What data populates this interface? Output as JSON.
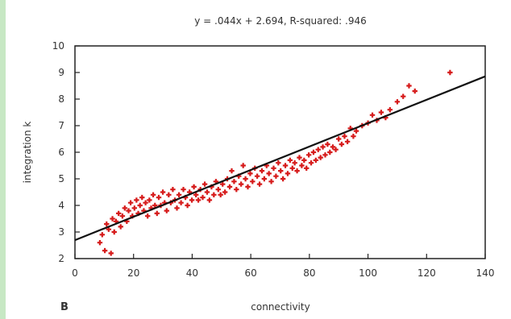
{
  "panel_label": "B",
  "chart_data": {
    "type": "scatter",
    "title": "y = .044x + 2.694, R-squared: .946",
    "xlabel": "connectivity",
    "ylabel": "integration k",
    "xlim": [
      0,
      140
    ],
    "ylim": [
      2,
      10
    ],
    "xticks": [
      0,
      20,
      40,
      60,
      80,
      100,
      120,
      140
    ],
    "yticks": [
      2,
      3,
      4,
      5,
      6,
      7,
      8,
      9,
      10
    ],
    "grid": false,
    "point_color": "#d61a1a",
    "line_color": "#111111",
    "regression": {
      "slope": 0.044,
      "intercept": 2.694
    },
    "points": [
      [
        8.5,
        2.6
      ],
      [
        9.3,
        2.9
      ],
      [
        10.2,
        2.3
      ],
      [
        10.8,
        3.3
      ],
      [
        11.5,
        3.1
      ],
      [
        12.3,
        2.2
      ],
      [
        12.8,
        3.5
      ],
      [
        13.4,
        3.0
      ],
      [
        14.0,
        3.4
      ],
      [
        14.9,
        3.7
      ],
      [
        15.6,
        3.2
      ],
      [
        16.2,
        3.6
      ],
      [
        17.0,
        3.9
      ],
      [
        17.7,
        3.4
      ],
      [
        18.3,
        3.8
      ],
      [
        19.0,
        4.1
      ],
      [
        19.6,
        3.6
      ],
      [
        20.3,
        3.9
      ],
      [
        21.0,
        4.2
      ],
      [
        21.6,
        3.7
      ],
      [
        22.2,
        4.0
      ],
      [
        22.9,
        4.3
      ],
      [
        23.5,
        3.8
      ],
      [
        24.1,
        4.1
      ],
      [
        24.8,
        3.6
      ],
      [
        25.4,
        4.2
      ],
      [
        26.0,
        3.9
      ],
      [
        26.7,
        4.4
      ],
      [
        27.3,
        4.0
      ],
      [
        28.0,
        3.7
      ],
      [
        28.6,
        4.3
      ],
      [
        29.3,
        4.0
      ],
      [
        30.0,
        4.5
      ],
      [
        30.6,
        4.1
      ],
      [
        31.3,
        3.8
      ],
      [
        32.0,
        4.4
      ],
      [
        32.7,
        4.1
      ],
      [
        33.4,
        4.6
      ],
      [
        34.1,
        4.2
      ],
      [
        34.8,
        3.9
      ],
      [
        35.5,
        4.4
      ],
      [
        36.2,
        4.1
      ],
      [
        37.0,
        4.6
      ],
      [
        37.7,
        4.3
      ],
      [
        38.4,
        4.0
      ],
      [
        39.1,
        4.5
      ],
      [
        39.9,
        4.2
      ],
      [
        40.6,
        4.7
      ],
      [
        41.3,
        4.4
      ],
      [
        42.1,
        4.2
      ],
      [
        42.8,
        4.6
      ],
      [
        43.6,
        4.3
      ],
      [
        44.3,
        4.8
      ],
      [
        45.1,
        4.5
      ],
      [
        45.9,
        4.2
      ],
      [
        46.6,
        4.7
      ],
      [
        47.4,
        4.4
      ],
      [
        48.1,
        4.9
      ],
      [
        48.9,
        4.6
      ],
      [
        49.7,
        4.4
      ],
      [
        50.4,
        4.8
      ],
      [
        51.2,
        4.5
      ],
      [
        52.0,
        5.0
      ],
      [
        52.8,
        4.7
      ],
      [
        53.5,
        5.3
      ],
      [
        54.3,
        4.9
      ],
      [
        55.1,
        4.6
      ],
      [
        55.9,
        5.1
      ],
      [
        56.7,
        4.8
      ],
      [
        57.4,
        5.5
      ],
      [
        58.2,
        5.0
      ],
      [
        59.0,
        4.7
      ],
      [
        59.8,
        5.2
      ],
      [
        60.6,
        4.9
      ],
      [
        61.4,
        5.4
      ],
      [
        62.2,
        5.1
      ],
      [
        63.0,
        4.8
      ],
      [
        63.8,
        5.3
      ],
      [
        64.6,
        5.0
      ],
      [
        65.4,
        5.5
      ],
      [
        66.2,
        5.2
      ],
      [
        67.0,
        4.9
      ],
      [
        67.8,
        5.4
      ],
      [
        68.6,
        5.1
      ],
      [
        69.4,
        5.6
      ],
      [
        70.2,
        5.3
      ],
      [
        71.0,
        5.0
      ],
      [
        71.8,
        5.5
      ],
      [
        72.6,
        5.2
      ],
      [
        73.4,
        5.7
      ],
      [
        74.2,
        5.4
      ],
      [
        75.0,
        5.6
      ],
      [
        75.8,
        5.3
      ],
      [
        76.6,
        5.8
      ],
      [
        77.4,
        5.5
      ],
      [
        78.2,
        5.7
      ],
      [
        79.0,
        5.4
      ],
      [
        79.8,
        5.9
      ],
      [
        80.6,
        5.6
      ],
      [
        81.4,
        6.0
      ],
      [
        82.2,
        5.7
      ],
      [
        83.0,
        6.1
      ],
      [
        83.8,
        5.8
      ],
      [
        84.6,
        6.2
      ],
      [
        85.4,
        5.9
      ],
      [
        86.2,
        6.3
      ],
      [
        87.0,
        6.0
      ],
      [
        88.0,
        6.2
      ],
      [
        89.0,
        6.1
      ],
      [
        90.0,
        6.5
      ],
      [
        91.0,
        6.3
      ],
      [
        92.0,
        6.6
      ],
      [
        93.0,
        6.4
      ],
      [
        94.0,
        6.9
      ],
      [
        95.0,
        6.6
      ],
      [
        96.0,
        6.8
      ],
      [
        98.0,
        7.0
      ],
      [
        100.0,
        7.1
      ],
      [
        101.5,
        7.4
      ],
      [
        103.0,
        7.2
      ],
      [
        104.5,
        7.5
      ],
      [
        106.0,
        7.3
      ],
      [
        107.5,
        7.6
      ],
      [
        110.0,
        7.9
      ],
      [
        112.0,
        8.1
      ],
      [
        114.0,
        8.5
      ],
      [
        116.0,
        8.3
      ],
      [
        128.0,
        9.0
      ]
    ]
  }
}
